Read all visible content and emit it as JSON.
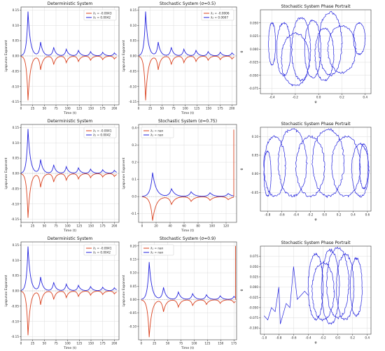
{
  "chart_data": [
    {
      "type": "line",
      "panel": "r1c1",
      "title": "Deterministic System",
      "xlabel": "Time (t)",
      "ylabel": "Lyapunov Exponent",
      "xlim": [
        0,
        210
      ],
      "ylim": [
        -0.16,
        0.16
      ],
      "xticks": [
        "0",
        "25",
        "50",
        "75",
        "100",
        "125",
        "150",
        "175",
        "200"
      ],
      "yticks": [
        "-0.15",
        "-0.10",
        "-0.05",
        "0.00",
        "0.05",
        "0.10",
        "0.15"
      ],
      "legend_position": "top-right",
      "series": [
        {
          "name": "λ₁ = -0.0043",
          "color": "#d9411e",
          "peaks": [
            [
              15,
              -0.145
            ],
            [
              42,
              -0.045
            ],
            [
              70,
              -0.028
            ],
            [
              97,
              -0.022
            ],
            [
              123,
              -0.018
            ],
            [
              149,
              -0.014
            ],
            [
              175,
              -0.012
            ],
            [
              200,
              -0.01
            ]
          ]
        },
        {
          "name": "λ₂ = 0.0042",
          "color": "#2222dd",
          "peaks": [
            [
              15,
              0.145
            ],
            [
              42,
              0.045
            ],
            [
              70,
              0.028
            ],
            [
              97,
              0.022
            ],
            [
              123,
              0.018
            ],
            [
              149,
              0.014
            ],
            [
              175,
              0.012
            ],
            [
              200,
              0.01
            ]
          ]
        }
      ]
    },
    {
      "type": "line",
      "panel": "r1c2",
      "title": "Stochastic System (σ=0.5)",
      "xlabel": "Time (t)",
      "ylabel": "Lyapunov Exponent",
      "xlim": [
        0,
        210
      ],
      "ylim": [
        -0.16,
        0.16
      ],
      "xticks": [
        "0",
        "25",
        "50",
        "75",
        "100",
        "125",
        "150",
        "175",
        "200"
      ],
      "yticks": [
        "-0.15",
        "-0.10",
        "-0.05",
        "0.00",
        "0.05",
        "0.10",
        "0.15"
      ],
      "legend_position": "top-right",
      "series": [
        {
          "name": "λ₁ = -0.0006",
          "color": "#d9411e",
          "peaks": [
            [
              15,
              -0.145
            ],
            [
              42,
              -0.045
            ],
            [
              70,
              -0.028
            ],
            [
              97,
              -0.022
            ],
            [
              123,
              -0.018
            ],
            [
              149,
              -0.014
            ],
            [
              175,
              -0.012
            ],
            [
              200,
              -0.01
            ]
          ]
        },
        {
          "name": "λ₂ = 0.0007",
          "color": "#2222dd",
          "peaks": [
            [
              15,
              0.145
            ],
            [
              42,
              0.045
            ],
            [
              70,
              0.028
            ],
            [
              97,
              0.022
            ],
            [
              123,
              0.018
            ],
            [
              149,
              0.014
            ],
            [
              175,
              0.012
            ],
            [
              200,
              0.01
            ]
          ]
        }
      ]
    },
    {
      "type": "scatter",
      "panel": "r1c3",
      "title": "Stochastic System Phase Portrait",
      "xlabel": "φ",
      "ylabel": "θ",
      "xlim": [
        -0.5,
        0.45
      ],
      "ylim": [
        -0.085,
        0.075
      ],
      "xticks": [
        "-0.4",
        "-0.2",
        "0.0",
        "0.2",
        "0.4"
      ],
      "yticks": [
        "-0.075",
        "-0.050",
        "-0.025",
        "0.000",
        "0.025",
        "0.050"
      ],
      "color": "#2222dd",
      "loops": [
        [
          -0.3,
          0.0,
          0.06,
          0.05
        ],
        [
          -0.15,
          0.0,
          0.08,
          0.06
        ],
        [
          -0.05,
          0.0,
          0.07,
          0.055
        ],
        [
          0.05,
          -0.01,
          0.08,
          0.05
        ],
        [
          0.2,
          0.0,
          0.12,
          0.045
        ],
        [
          0.35,
          0.02,
          0.05,
          0.03
        ],
        [
          -0.4,
          0.01,
          0.03,
          0.04
        ],
        [
          -0.2,
          -0.02,
          0.12,
          0.05
        ],
        [
          0.1,
          0.01,
          0.1,
          0.06
        ]
      ]
    },
    {
      "type": "line",
      "panel": "r2c1",
      "title": "Deterministic System",
      "xlabel": "Time (t)",
      "ylabel": "Lyapunov Exponent",
      "xlim": [
        0,
        210
      ],
      "ylim": [
        -0.16,
        0.16
      ],
      "xticks": [
        "0",
        "25",
        "50",
        "75",
        "100",
        "125",
        "150",
        "175",
        "200"
      ],
      "yticks": [
        "-0.15",
        "-0.10",
        "-0.05",
        "0.00",
        "0.05",
        "0.10",
        "0.15"
      ],
      "legend_position": "top-right",
      "series": [
        {
          "name": "λ₁ = -0.0041",
          "color": "#d9411e",
          "peaks": [
            [
              15,
              -0.145
            ],
            [
              42,
              -0.045
            ],
            [
              70,
              -0.028
            ],
            [
              97,
              -0.022
            ],
            [
              123,
              -0.018
            ],
            [
              149,
              -0.014
            ],
            [
              175,
              -0.012
            ],
            [
              200,
              -0.01
            ]
          ]
        },
        {
          "name": "λ₂ = 0.0042",
          "color": "#2222dd",
          "peaks": [
            [
              15,
              0.145
            ],
            [
              42,
              0.045
            ],
            [
              70,
              0.028
            ],
            [
              97,
              0.022
            ],
            [
              123,
              0.018
            ],
            [
              149,
              0.014
            ],
            [
              175,
              0.012
            ],
            [
              200,
              0.01
            ]
          ]
        }
      ]
    },
    {
      "type": "line",
      "panel": "r2c2",
      "title": "Stochastic System (σ=0.75)",
      "xlabel": "Time (t)",
      "ylabel": "Lyapunov Exponent",
      "xlim": [
        -5,
        135
      ],
      "ylim": [
        -0.15,
        0.42
      ],
      "xticks": [
        "0",
        "20",
        "40",
        "60",
        "80",
        "100",
        "120"
      ],
      "yticks": [
        "-0.1",
        "0.0",
        "0.1",
        "0.2",
        "0.3",
        "0.4"
      ],
      "legend_position": "top-left",
      "spike": {
        "x": 131,
        "y": 0.39
      },
      "series": [
        {
          "name": "λ₁ = nan",
          "color": "#d9411e",
          "peaks": [
            [
              15,
              -0.14
            ],
            [
              42,
              -0.045
            ],
            [
              70,
              -0.028
            ],
            [
              97,
              -0.022
            ],
            [
              123,
              -0.018
            ]
          ]
        },
        {
          "name": "λ₂ = nan",
          "color": "#2222dd",
          "peaks": [
            [
              15,
              0.14
            ],
            [
              42,
              0.045
            ],
            [
              70,
              0.028
            ],
            [
              97,
              0.022
            ],
            [
              123,
              0.018
            ]
          ]
        }
      ]
    },
    {
      "type": "scatter",
      "panel": "r2c3",
      "title": "Stochastic System Phase Portrait",
      "xlabel": "φ",
      "ylabel": "θ",
      "xlim": [
        -0.9,
        0.65
      ],
      "ylim": [
        -0.1,
        0.125
      ],
      "xticks": [
        "-0.8",
        "-0.6",
        "-0.4",
        "-0.2",
        "0.0",
        "0.2",
        "0.4",
        "0.6"
      ],
      "yticks": [
        "-0.05",
        "0.00",
        "0.05",
        "0.10"
      ],
      "color": "#2222dd",
      "loops": [
        [
          -0.7,
          0.02,
          0.15,
          0.08
        ],
        [
          -0.45,
          0.03,
          0.2,
          0.09
        ],
        [
          -0.2,
          0.02,
          0.2,
          0.08
        ],
        [
          0.05,
          0.03,
          0.22,
          0.09
        ],
        [
          0.3,
          0.02,
          0.2,
          0.08
        ],
        [
          0.5,
          0.01,
          0.12,
          0.07
        ],
        [
          -0.8,
          0.0,
          0.05,
          0.06
        ],
        [
          0.55,
          0.02,
          0.06,
          0.06
        ]
      ]
    },
    {
      "type": "line",
      "panel": "r3c1",
      "title": "Deterministic System",
      "xlabel": "Time (t)",
      "ylabel": "Lyapunov Exponent",
      "xlim": [
        0,
        210
      ],
      "ylim": [
        -0.16,
        0.16
      ],
      "xticks": [
        "0",
        "25",
        "50",
        "75",
        "100",
        "125",
        "150",
        "175",
        "200"
      ],
      "yticks": [
        "-0.15",
        "-0.10",
        "-0.05",
        "0.00",
        "0.05",
        "0.10",
        "0.15"
      ],
      "legend_position": "top-right",
      "series": [
        {
          "name": "λ₁ = -0.0041",
          "color": "#d9411e",
          "peaks": [
            [
              15,
              -0.145
            ],
            [
              42,
              -0.045
            ],
            [
              70,
              -0.028
            ],
            [
              97,
              -0.022
            ],
            [
              123,
              -0.018
            ],
            [
              149,
              -0.014
            ],
            [
              175,
              -0.012
            ],
            [
              200,
              -0.01
            ]
          ]
        },
        {
          "name": "λ₂ = 0.0042",
          "color": "#2222dd",
          "peaks": [
            [
              15,
              0.145
            ],
            [
              42,
              0.045
            ],
            [
              70,
              0.028
            ],
            [
              97,
              0.022
            ],
            [
              123,
              0.018
            ],
            [
              149,
              0.014
            ],
            [
              175,
              0.012
            ],
            [
              200,
              0.01
            ]
          ]
        }
      ]
    },
    {
      "type": "line",
      "panel": "r3c2",
      "title": "Stochastic System (σ=0.9)",
      "xlabel": "Time (t)",
      "ylabel": "Lyapunov Exponent",
      "xlim": [
        -5,
        180
      ],
      "ylim": [
        -0.15,
        0.215
      ],
      "xticks": [
        "0",
        "25",
        "50",
        "75",
        "100",
        "125",
        "150",
        "175"
      ],
      "yticks": [
        "-0.10",
        "-0.05",
        "0.00",
        "0.05",
        "0.10",
        "0.15",
        "0.20"
      ],
      "legend_position": "top-left",
      "spike": {
        "x": 178,
        "y": 0.2
      },
      "series": [
        {
          "name": "λ₁ = nan",
          "color": "#d9411e",
          "peaks": [
            [
              15,
              -0.14
            ],
            [
              42,
              -0.045
            ],
            [
              70,
              -0.028
            ],
            [
              97,
              -0.022
            ],
            [
              123,
              -0.018
            ],
            [
              149,
              -0.014
            ],
            [
              175,
              -0.012
            ]
          ]
        },
        {
          "name": "λ₂ = nan",
          "color": "#2222dd",
          "peaks": [
            [
              15,
              0.14
            ],
            [
              42,
              0.045
            ],
            [
              70,
              0.028
            ],
            [
              97,
              0.022
            ],
            [
              123,
              0.018
            ],
            [
              149,
              0.014
            ],
            [
              175,
              0.012
            ]
          ]
        }
      ]
    },
    {
      "type": "scatter",
      "panel": "r3c3",
      "title": "Stochastic System Phase Portrait",
      "xlabel": "φ",
      "ylabel": "θ",
      "xlim": [
        -1.05,
        0.45
      ],
      "ylim": [
        -0.115,
        0.1
      ],
      "xticks": [
        "-1.0",
        "-0.8",
        "-0.6",
        "-0.4",
        "-0.2",
        "0.0",
        "0.2",
        "0.4"
      ],
      "yticks": [
        "-0.100",
        "-0.075",
        "-0.050",
        "-0.025",
        "0.000",
        "0.025",
        "0.050",
        "0.075"
      ],
      "color": "#2222dd",
      "loops": [
        [
          -0.3,
          0.0,
          0.1,
          0.08
        ],
        [
          -0.1,
          0.0,
          0.12,
          0.09
        ],
        [
          0.1,
          0.0,
          0.12,
          0.08
        ],
        [
          0.25,
          0.0,
          0.08,
          0.07
        ],
        [
          -0.2,
          -0.01,
          0.15,
          0.07
        ],
        [
          0.0,
          0.01,
          0.15,
          0.085
        ]
      ],
      "tail": [
        [
          -1.0,
          -0.07
        ],
        [
          -0.95,
          -0.08
        ],
        [
          -0.9,
          -0.05
        ],
        [
          -0.85,
          -0.06
        ],
        [
          -0.8,
          0.0
        ],
        [
          -0.78,
          -0.09
        ],
        [
          -0.7,
          -0.04
        ],
        [
          -0.65,
          -0.05
        ],
        [
          -0.6,
          0.05
        ],
        [
          -0.55,
          -0.03
        ],
        [
          -0.5,
          -0.02
        ],
        [
          -0.45,
          -0.01
        ],
        [
          -0.4,
          -0.02
        ]
      ]
    }
  ]
}
